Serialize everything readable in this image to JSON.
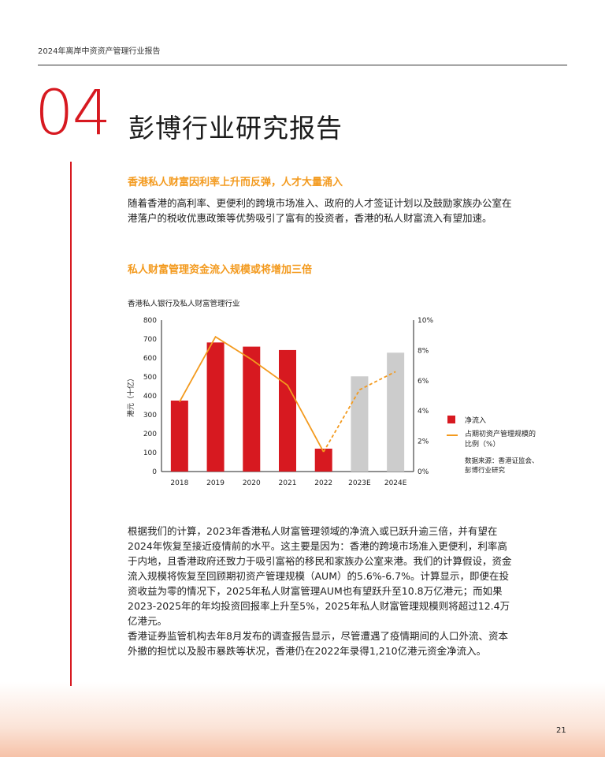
{
  "header": {
    "running_title": "2024年离岸中资资产管理行业报告"
  },
  "chapter": {
    "number": "04",
    "title": "彭博行业研究报告"
  },
  "section1": {
    "heading": "香港私人财富因利率上升而反弹，人才大量涌入",
    "body": "随着香港的高利率、更便利的跨境市场准入、政府的人才签证计划以及鼓励家族办公室在港落户的税收优惠政策等优势吸引了富有的投资者，香港的私人财富流入有望加速。"
  },
  "section2": {
    "heading": "私人财富管理资金流入规模或将增加三倍"
  },
  "chart_data": {
    "type": "bar",
    "title": "香港私人银行及私人财富管理行业",
    "ylabel": "港元（十亿）",
    "y2label": "",
    "categories": [
      "2018",
      "2019",
      "2020",
      "2021",
      "2022",
      "2023E",
      "2024E"
    ],
    "ylim": [
      0,
      800
    ],
    "y_ticks": [
      "800",
      "700",
      "600",
      "500",
      "400",
      "300",
      "200",
      "100",
      "0"
    ],
    "y2lim": [
      0,
      10
    ],
    "y2_ticks": [
      "10%",
      "8%",
      "6%",
      "4%",
      "2%",
      "0%"
    ],
    "series": [
      {
        "name": "净流入",
        "kind": "bar",
        "values": [
          375,
          682,
          660,
          642,
          121,
          503,
          628
        ],
        "estimate_flags": [
          false,
          false,
          false,
          false,
          false,
          true,
          true
        ],
        "color": "#d71920",
        "estimate_color": "#cccccc"
      },
      {
        "name": "占期初资产管理规模的比例（%）",
        "kind": "line",
        "axis": "right",
        "values": [
          4.6,
          8.9,
          7.4,
          5.7,
          1.3,
          5.4,
          6.6
        ],
        "dashed_from_index": 4,
        "color": "#f39a1e"
      }
    ],
    "legend": {
      "bar_label": "净流入",
      "line_label_1": "占期初资产管理规模的",
      "line_label_2": "比例（%）",
      "placement": "right"
    },
    "source_line_1": "数据来源：香港证监会、",
    "source_line_2": "彭博行业研究"
  },
  "para2": "根据我们的计算，2023年香港私人财富管理领域的净流入或已跃升逾三倍，并有望在2024年恢复至接近疫情前的水平。这主要是因为：香港的跨境市场准入更便利，利率高于内地，且香港政府还致力于吸引富裕的移民和家族办公室来港。我们的计算假设，资金流入规模将恢复至回顾期初资产管理规模（AUM）的5.6%-6.7%。计算显示，即便在投资收益为零的情况下，2025年私人财富管理AUM也有望跃升至10.8万亿港元；而如果2023-2025年的年均投资回报率上升至5%，2025年私人财富管理规模则将超过12.4万亿港元。",
  "para3": "香港证券监管机构去年8月发布的调查报告显示，尽管遭遇了疫情期间的人口外流、资本外撤的担忧以及股市暴跌等状况，香港仍在2022年录得1,210亿港元资金净流入。",
  "footer": {
    "page_number": "21"
  }
}
